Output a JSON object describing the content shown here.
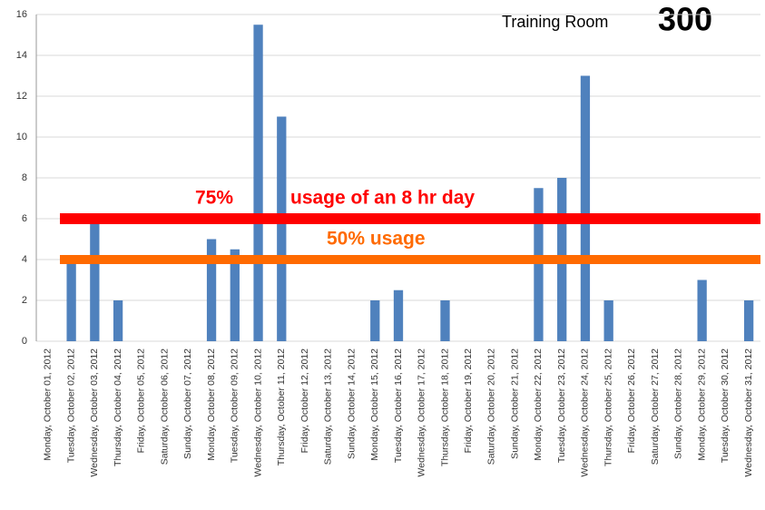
{
  "chart_data": {
    "type": "bar",
    "title": "Training Room",
    "subtitle": "300",
    "categories": [
      "Monday, October 01, 2012",
      "Tuesday, October 02, 2012",
      "Wednesday, October 03, 2012",
      "Thursday, October 04, 2012",
      "Friday, October 05, 2012",
      "Saturday, October 06, 2012",
      "Sunday, October 07, 2012",
      "Monday, October 08, 2012",
      "Tuesday, October 09, 2012",
      "Wednesday, October 10, 2012",
      "Thursday, October 11, 2012",
      "Friday, October 12, 2012",
      "Saturday, October 13, 2012",
      "Sunday, October 14, 2012",
      "Monday, October 15, 2012",
      "Tuesday, October 16, 2012",
      "Wednesday, October 17, 2012",
      "Thursday, October 18, 2012",
      "Friday, October 19, 2012",
      "Saturday, October 20, 2012",
      "Sunday, October 21, 2012",
      "Monday, October 22, 2012",
      "Tuesday, October 23, 2012",
      "Wednesday, October 24, 2012",
      "Thursday, October 25, 2012",
      "Friday, October 26, 2012",
      "Saturday, October 27, 2012",
      "Sunday, October 28, 2012",
      "Monday, October 29, 2012",
      "Tuesday, October 30, 2012",
      "Wednesday, October 31, 2012"
    ],
    "values": [
      0,
      4,
      6,
      2,
      0,
      0,
      0,
      5,
      4.5,
      15.5,
      11,
      0,
      0,
      0,
      2,
      2.5,
      0,
      2,
      0,
      0,
      0,
      7.5,
      8,
      13,
      2,
      0,
      0,
      0,
      3,
      0,
      2
    ],
    "color": "#4f81bd",
    "ylim": [
      0,
      16
    ],
    "yticks": [
      0,
      2,
      4,
      6,
      8,
      10,
      12,
      14,
      16
    ],
    "grid": true,
    "reference_lines": [
      {
        "value": 6,
        "color": "#ff0000",
        "labels": [
          "75%",
          "usage of an 8 hr day"
        ]
      },
      {
        "value": 4,
        "color": "#ff6a00",
        "labels": [
          "50% usage"
        ]
      }
    ]
  }
}
